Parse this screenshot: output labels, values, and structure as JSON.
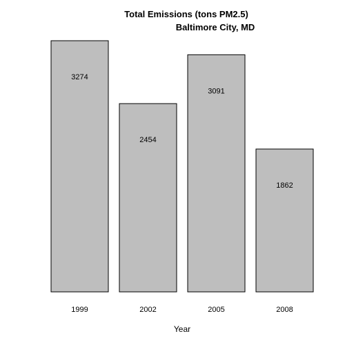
{
  "chart_data": {
    "type": "bar",
    "title": "Total Emissions (tons PM2.5)",
    "subtitle": "Baltimore City, MD",
    "categories": [
      "1999",
      "2002",
      "2005",
      "2008"
    ],
    "values": [
      3274,
      2454,
      3091,
      1862
    ],
    "data_labels": [
      "3274",
      "2454",
      "3091",
      "1862"
    ],
    "xlabel": "Year",
    "ylabel": "",
    "ylim": [
      0,
      3274
    ],
    "grid": false,
    "bar_color": "#bebebe",
    "border_color": "#000000"
  }
}
